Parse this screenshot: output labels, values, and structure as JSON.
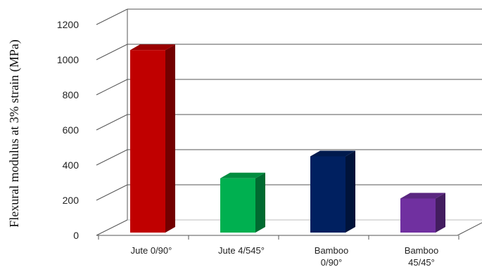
{
  "chart_data": {
    "type": "bar",
    "style": "3d-column",
    "categories": [
      [
        "Jute 0/90°"
      ],
      [
        "Jute 4/545°"
      ],
      [
        "Bamboo",
        "0/90°"
      ],
      [
        "Bamboo",
        "45/45°"
      ]
    ],
    "values": [
      1055,
      325,
      450,
      210
    ],
    "colors": [
      "#c00000",
      "#00b050",
      "#002060",
      "#7030a0"
    ],
    "title": "",
    "xlabel": "",
    "ylabel": "Flexural modulus at 3% strain (MPa)",
    "ylim": [
      0,
      1200
    ],
    "yticks": [
      "0",
      "200",
      "400",
      "600",
      "800",
      "1000",
      "1200"
    ],
    "grid": true,
    "legend": "none"
  }
}
